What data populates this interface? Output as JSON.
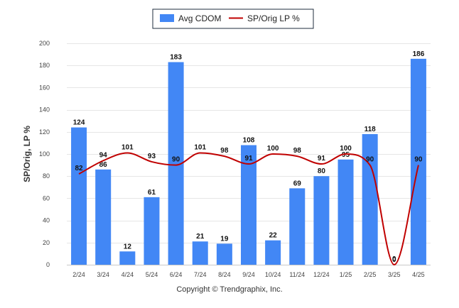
{
  "chart_data": {
    "type": "bar",
    "categories": [
      "2/24",
      "3/24",
      "4/24",
      "5/24",
      "6/24",
      "7/24",
      "8/24",
      "9/24",
      "10/24",
      "11/24",
      "12/24",
      "1/25",
      "2/25",
      "3/25",
      "4/25"
    ],
    "series": [
      {
        "name": "Avg CDOM",
        "kind": "bar",
        "color": "#4287f5",
        "values": [
          124,
          86,
          12,
          61,
          183,
          21,
          19,
          108,
          22,
          69,
          80,
          95,
          118,
          0,
          186
        ]
      },
      {
        "name": "SP/Orig LP %",
        "kind": "line",
        "color": "#c00000",
        "values": [
          82,
          94,
          101,
          93,
          90,
          101,
          98,
          91,
          100,
          98,
          91,
          100,
          90,
          0,
          90
        ]
      }
    ],
    "ylabel": "SP/Orig, LP %",
    "ylim": [
      0,
      200
    ],
    "yticks": [
      0,
      20,
      40,
      60,
      80,
      100,
      120,
      140,
      160,
      180,
      200
    ],
    "grid": true,
    "legend_position": "top-center"
  },
  "legend": {
    "bar_label": "Avg CDOM",
    "line_label": "SP/Orig LP %"
  },
  "footer": {
    "copyright": "Copyright © Trendgraphix, Inc."
  }
}
